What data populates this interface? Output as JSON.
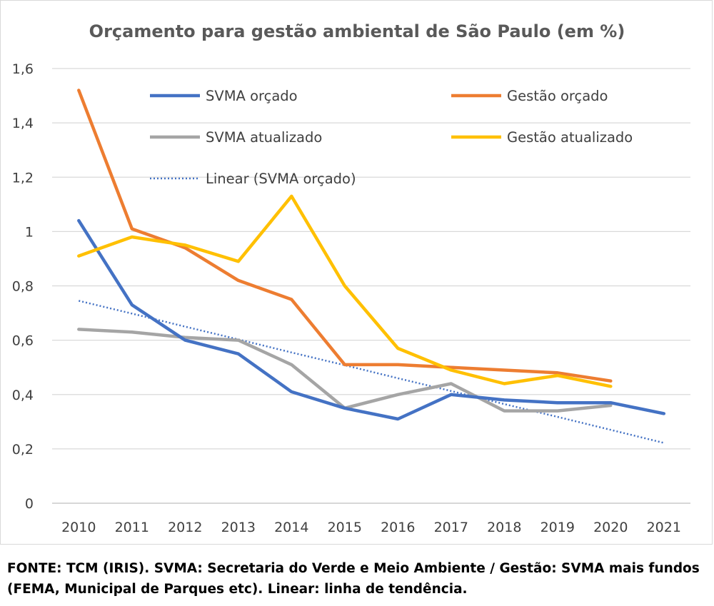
{
  "chart_data": {
    "type": "line",
    "title": "Orçamento para gestão ambiental de São Paulo (em %)",
    "categories": [
      "2010",
      "2011",
      "2012",
      "2013",
      "2014",
      "2015",
      "2016",
      "2017",
      "2018",
      "2019",
      "2020",
      "2021"
    ],
    "ylim": [
      0,
      1.6
    ],
    "yticks": [
      0,
      0.2,
      0.4,
      0.6,
      0.8,
      1,
      1.2,
      1.4,
      1.6
    ],
    "ytick_labels": [
      "0",
      "0,2",
      "0,4",
      "0,6",
      "0,8",
      "1",
      "1,2",
      "1,4",
      "1,6"
    ],
    "grid": true,
    "legend": "top",
    "series": [
      {
        "name": "SVMA orçado",
        "color": "#4472c4",
        "dash": false,
        "values": [
          1.04,
          0.73,
          0.6,
          0.55,
          0.41,
          0.35,
          0.31,
          0.4,
          0.38,
          0.37,
          0.37,
          0.33
        ]
      },
      {
        "name": "Gestão orçado",
        "color": "#ed7d31",
        "dash": false,
        "values": [
          1.52,
          1.01,
          0.94,
          0.82,
          0.75,
          0.51,
          0.51,
          0.5,
          0.49,
          0.48,
          0.45,
          null
        ]
      },
      {
        "name": "SVMA atualizado",
        "color": "#a5a5a5",
        "dash": false,
        "values": [
          0.64,
          0.63,
          0.61,
          0.6,
          0.51,
          0.35,
          0.4,
          0.44,
          0.34,
          0.34,
          0.36,
          null
        ]
      },
      {
        "name": "Gestão atualizado",
        "color": "#ffc000",
        "dash": false,
        "values": [
          0.91,
          0.98,
          0.95,
          0.89,
          1.13,
          0.8,
          0.57,
          0.49,
          0.44,
          0.47,
          0.43,
          null
        ]
      },
      {
        "name": "Linear (SVMA orçado)",
        "color": "#4472c4",
        "dash": true,
        "values": [
          0.745,
          0.698,
          0.65,
          0.603,
          0.555,
          0.508,
          0.46,
          0.413,
          0.365,
          0.318,
          0.27,
          0.222
        ]
      }
    ]
  },
  "source": {
    "text": "FONTE: TCM (IRIS). SVMA: Secretaria do Verde e Meio Ambiente / Gestão: SVMA mais fundos (FEMA, Municipal de Parques etc). Linear: linha de tendência."
  }
}
